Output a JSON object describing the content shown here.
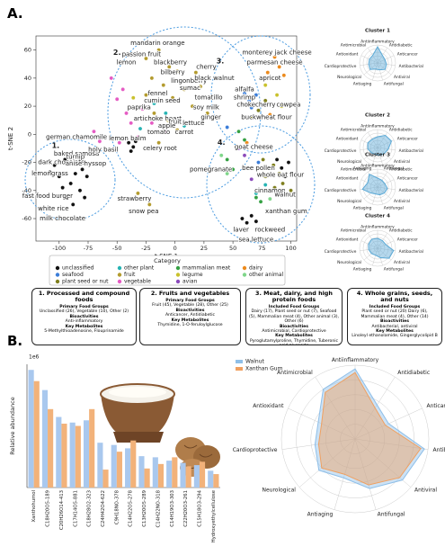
{
  "panel_a": "A.",
  "panel_b": "B.",
  "chart_data": [
    {
      "type": "scatter",
      "xlabel": "t-SNE 1",
      "ylabel": "t-SNE 2",
      "xlim": [
        -120,
        105
      ],
      "ylim": [
        -76,
        70
      ],
      "xticks": [
        -100,
        -75,
        -50,
        -25,
        0,
        25,
        50,
        75,
        100
      ],
      "yticks": [
        -60,
        -40,
        -20,
        0,
        20,
        40,
        60
      ],
      "legend_title": "Category",
      "series": [
        {
          "name": "unclassified",
          "color": "#111111",
          "x": [
            -108,
            -104,
            -100,
            -97,
            -93,
            -88,
            -90,
            -86,
            -82,
            -95,
            -80,
            -76,
            -78,
            -40,
            -36,
            -34,
            -38,
            58,
            62,
            66,
            70,
            88,
            92,
            95,
            98,
            -8,
            -2
          ],
          "y": [
            -27,
            -22,
            -30,
            -38,
            -45,
            -50,
            -35,
            -28,
            -40,
            -18,
            -25,
            -30,
            -45,
            -6,
            -9,
            -5,
            -12,
            -60,
            -63,
            -58,
            -62,
            -18,
            -24,
            -30,
            -20,
            44,
            38
          ]
        },
        {
          "name": "seafood",
          "color": "#3b7dd8",
          "x": [
            60,
            64,
            70,
            66,
            45,
            72
          ],
          "y": [
            29,
            24,
            28,
            19,
            5,
            -20
          ]
        },
        {
          "name": "plant seed or nut",
          "color": "#7f7f1e",
          "x": [
            85,
            90,
            93,
            78,
            76,
            86,
            72,
            78,
            66,
            100
          ],
          "y": [
            -22,
            -28,
            -35,
            -30,
            -18,
            -38,
            17,
            24,
            12,
            -40
          ]
        },
        {
          "name": "other plant",
          "color": "#26b3b3",
          "x": [
            -18,
            -8,
            8,
            70,
            78,
            -30
          ],
          "y": [
            22,
            15,
            6,
            -42,
            -36,
            4
          ]
        },
        {
          "name": "fruit",
          "color": "#b39b2e",
          "x": [
            -14,
            -25,
            -5,
            2,
            18,
            -20,
            -10,
            8,
            22,
            -25,
            -2,
            15,
            28,
            -18,
            -6,
            2,
            -14,
            -32,
            -22
          ],
          "y": [
            60,
            54,
            48,
            45,
            44,
            40,
            35,
            32,
            34,
            28,
            26,
            20,
            15,
            15,
            10,
            3,
            -6,
            -42,
            -50
          ]
        },
        {
          "name": "vegetable",
          "color": "#e55bc3",
          "x": [
            -55,
            -50,
            -42,
            -38,
            -28,
            -20,
            -8,
            -32,
            -48,
            -65,
            -70,
            -45
          ],
          "y": [
            40,
            25,
            15,
            8,
            18,
            8,
            2,
            -2,
            -6,
            -5,
            2,
            32
          ]
        },
        {
          "name": "mammalian meat",
          "color": "#35a043",
          "x": [
            55,
            60,
            45,
            50,
            70,
            74
          ],
          "y": [
            2,
            -4,
            -18,
            -25,
            -45,
            -48
          ]
        },
        {
          "name": "legume",
          "color": "#c9c12c",
          "x": [
            78,
            88,
            92,
            -36
          ],
          "y": [
            35,
            28,
            20,
            26
          ]
        },
        {
          "name": "avian",
          "color": "#8b4bbb",
          "x": [
            55,
            60,
            66
          ],
          "y": [
            -10,
            -15,
            -32
          ]
        },
        {
          "name": "dairy",
          "color": "#ec8a1c",
          "x": [
            86,
            90,
            80,
            94,
            82,
            62
          ],
          "y": [
            55,
            48,
            44,
            42,
            14,
            -6
          ]
        },
        {
          "name": "other animal",
          "color": "#7fd68a",
          "x": [
            45,
            40,
            82
          ],
          "y": [
            -28,
            -15,
            -46
          ]
        }
      ],
      "annotations": [
        {
          "text": "mandarin orange",
          "x": -15,
          "y": 65
        },
        {
          "text": "passion fruit",
          "x": -29,
          "y": 57
        },
        {
          "text": "lemon",
          "x": -42,
          "y": 51
        },
        {
          "text": "blackberry",
          "x": -4,
          "y": 51
        },
        {
          "text": "bilberry",
          "x": -2,
          "y": 44
        },
        {
          "text": "cherry",
          "x": 27,
          "y": 48
        },
        {
          "text": "lingonberry",
          "x": 12,
          "y": 38
        },
        {
          "text": "black walnut",
          "x": 34,
          "y": 40
        },
        {
          "text": "sumac",
          "x": 13,
          "y": 33
        },
        {
          "text": "tomatillo",
          "x": 29,
          "y": 26
        },
        {
          "text": "fennel",
          "x": -15,
          "y": 29
        },
        {
          "text": "cumin seed",
          "x": -11,
          "y": 24
        },
        {
          "text": "paprika",
          "x": -31,
          "y": 19
        },
        {
          "text": "soy milk",
          "x": 27,
          "y": 19
        },
        {
          "text": "artichoke heart",
          "x": -15,
          "y": 11
        },
        {
          "text": "fruit",
          "x": 0,
          "y": 9
        },
        {
          "text": "ginger",
          "x": 31,
          "y": 12
        },
        {
          "text": "apple",
          "x": -7,
          "y": 6
        },
        {
          "text": "lettuce",
          "x": 16,
          "y": 8
        },
        {
          "text": "tomato",
          "x": -14,
          "y": 1.5
        },
        {
          "text": "carrot",
          "x": 8,
          "y": 1.5
        },
        {
          "text": "lemon balm",
          "x": -41,
          "y": -3
        },
        {
          "text": "celery root",
          "x": -13,
          "y": -10
        },
        {
          "text": "strawberry",
          "x": -35,
          "y": -46
        },
        {
          "text": "snow pea",
          "x": -27,
          "y": -55
        },
        {
          "text": "german chamomile",
          "x": -85,
          "y": -2
        },
        {
          "text": "baked samosa",
          "x": -85,
          "y": -14
        },
        {
          "text": "holy basil",
          "x": -62,
          "y": -11
        },
        {
          "text": "turnip",
          "x": -86,
          "y": -16
        },
        {
          "text": "dark chocolate",
          "x": -98,
          "y": -20
        },
        {
          "text": "anise hyssop",
          "x": -77,
          "y": -21
        },
        {
          "text": "lemongrass",
          "x": -108,
          "y": -28
        },
        {
          "text": "fast food burger",
          "x": -110,
          "y": -44
        },
        {
          "text": "white rice",
          "x": -105,
          "y": -53
        },
        {
          "text": "milk chocolate",
          "x": -97,
          "y": -60
        },
        {
          "text": "monterey jack cheese",
          "x": 88,
          "y": 58
        },
        {
          "text": "parmesan cheese",
          "x": 86,
          "y": 51
        },
        {
          "text": "apricot",
          "x": 82,
          "y": 40
        },
        {
          "text": "alfalfa",
          "x": 60,
          "y": 32
        },
        {
          "text": "shrimp",
          "x": 60,
          "y": 26
        },
        {
          "text": "chokecherry",
          "x": 70,
          "y": 21
        },
        {
          "text": "cowpea",
          "x": 98,
          "y": 21
        },
        {
          "text": "buckwheat flour",
          "x": 79,
          "y": 12
        },
        {
          "text": "goat cheese",
          "x": 68,
          "y": -9
        },
        {
          "text": "bee pollen",
          "x": 72,
          "y": -24
        },
        {
          "text": "whole oat flour",
          "x": 91,
          "y": -29
        },
        {
          "text": "pomegranate",
          "x": 31,
          "y": -25
        },
        {
          "text": "cinnamon",
          "x": 82,
          "y": -40
        },
        {
          "text": "walnut",
          "x": 95,
          "y": -43
        },
        {
          "text": "xanthan gum",
          "x": 96,
          "y": -55
        },
        {
          "text": "laver",
          "x": 57,
          "y": -68
        },
        {
          "text": "rockweed",
          "x": 82,
          "y": -68
        },
        {
          "text": "sea lettuce",
          "x": 70,
          "y": -75
        },
        {
          "text": "1.",
          "x": -103,
          "y": -8
        },
        {
          "text": "2.",
          "x": -50,
          "y": 58
        },
        {
          "text": "3.",
          "x": 39,
          "y": 52
        },
        {
          "text": "4.",
          "x": 40,
          "y": -6
        }
      ]
    },
    {
      "type": "radar",
      "title": "Cluster 1",
      "color": "#5aa9d6",
      "categories": [
        "Antiinflammatory",
        "Antidiabetic",
        "Anticancer",
        "Antibacterial",
        "Antiviral",
        "Antifungal",
        "Antiaging",
        "Neurological",
        "Cardioprotective",
        "Antioxidant",
        "Antimicrobial"
      ],
      "values": [
        0.9,
        0.5,
        0.45,
        0.5,
        0.55,
        0.4,
        0.35,
        0.55,
        0.5,
        0.5,
        0.5
      ],
      "ylim": [
        0,
        1
      ]
    },
    {
      "type": "radar",
      "title": "Cluster 2",
      "color": "#5aa9d6",
      "categories": [
        "Antiinflammatory",
        "Antidiabetic",
        "Anticancer",
        "Antibacterial",
        "Antiviral",
        "Antifungal",
        "Antiaging",
        "Neurological",
        "Cardioprotective",
        "Antioxidant",
        "Antimicrobial"
      ],
      "values": [
        0.6,
        0.8,
        0.85,
        0.6,
        0.5,
        0.45,
        0.4,
        0.45,
        0.55,
        0.6,
        0.55
      ],
      "ylim": [
        0,
        1
      ]
    },
    {
      "type": "radar",
      "title": "Cluster 3",
      "color": "#5aa9d6",
      "categories": [
        "Antiinflammatory",
        "Antidiabetic",
        "Anticancer",
        "Antibacterial",
        "Antiviral",
        "Antifungal",
        "Antiaging",
        "Neurological",
        "Cardioprotective",
        "Antioxidant",
        "Antimicrobial"
      ],
      "values": [
        0.5,
        0.45,
        0.45,
        0.55,
        0.5,
        0.45,
        0.4,
        0.5,
        0.85,
        0.6,
        0.85
      ],
      "ylim": [
        0,
        1
      ]
    },
    {
      "type": "radar",
      "title": "Cluster 4",
      "color": "#5aa9d6",
      "categories": [
        "Antiinflammatory",
        "Antidiabetic",
        "Anticancer",
        "Antibacterial",
        "Antiviral",
        "Antifungal",
        "Antiaging",
        "Neurological",
        "Cardioprotective",
        "Antioxidant",
        "Antimicrobial"
      ],
      "values": [
        0.55,
        0.5,
        0.5,
        0.9,
        0.85,
        0.55,
        0.4,
        0.45,
        0.5,
        0.55,
        0.6
      ],
      "ylim": [
        0,
        1
      ]
    },
    {
      "type": "bar",
      "ylabel": "Relative abundance",
      "offset_label": "1e6",
      "ylim": [
        0,
        1.1
      ],
      "categories": [
        "Xanthohumol",
        "C18H20O5-189",
        "C20H26O14-413",
        "C17H14O5-881",
        "C18H28O2-323",
        "C24H42O4-622",
        "C9H18NO-378",
        "C14H22O5-278",
        "C13H20O5-289",
        "C14H22NO-318",
        "C14H19O3-303",
        "C22H20O3-261",
        "C15H18O3-294",
        "Hydroxyethylcellulose"
      ],
      "series": [
        {
          "name": "Walnut",
          "color": "#a9c8ee",
          "values": [
            1.05,
            0.87,
            0.63,
            0.58,
            0.6,
            0.4,
            0.38,
            0.35,
            0.28,
            0.27,
            0.24,
            0.22,
            0.2,
            0.15
          ]
        },
        {
          "name": "Xanthan Gum",
          "color": "#f2b27a",
          "values": [
            0.95,
            0.7,
            0.57,
            0.55,
            0.7,
            0.16,
            0.32,
            0.42,
            0.17,
            0.21,
            0.27,
            0.19,
            0.23,
            0.12
          ]
        }
      ]
    },
    {
      "type": "radar",
      "categories": [
        "Antiinflammatory",
        "Antidiabetic",
        "Anticancer",
        "Antibacterial",
        "Antiviral",
        "Antifungal",
        "Antiaging",
        "Neurological",
        "Cardioprotective",
        "Antioxidant",
        "Antimicrobial"
      ],
      "ylim": [
        0,
        1
      ],
      "series": [
        {
          "name": "Walnut",
          "color": "#8fbfe8",
          "values": [
            0.95,
            0.55,
            0.5,
            0.95,
            0.85,
            0.7,
            0.55,
            0.65,
            0.55,
            0.55,
            0.8
          ]
        },
        {
          "name": "Xanthan Gum",
          "color": "#f0a060",
          "values": [
            0.9,
            0.5,
            0.45,
            0.9,
            0.8,
            0.65,
            0.5,
            0.6,
            0.5,
            0.5,
            0.75
          ]
        }
      ]
    }
  ],
  "clusters": [
    {
      "title": "1. Processed and compound foods",
      "groups_heading": "Primary Food Groups",
      "groups": "Unclassified (26), Vegetable (10), Other (2)",
      "bio_heading": "Bioactivities",
      "bio": "Anti-inflammatory",
      "metab_heading": "Key Metabolites",
      "metab": "5-Methylthioadenosine, Flouprinamide"
    },
    {
      "title": "2. Fruits and vegetables",
      "groups_heading": "Primary Food Groups",
      "groups": "Fruit (45), Vegetable (28), Other (25)",
      "bio_heading": "Bioactivities",
      "bio": "Anticancer, Antidiabetic",
      "metab_heading": "Key Metabolites",
      "metab": "Thymidine, 1-O-feruloylglucose"
    },
    {
      "title": "3. Meat, dairy, and high protein foods",
      "groups_heading": "Included Food Groups",
      "groups": "Dairy (17), Plant seed or nut (7), Seafood (5), Mammalian meat (4), Other animal (3), Other (6)",
      "bio_heading": "Bioactivities",
      "bio": "Antimicrobial, Cardioprotective",
      "metab_heading": "Key Metabolites",
      "metab": "Pyroglutamylproline, Thymidine, Tuberonic acid glucoside"
    },
    {
      "title": "4. Whole grains, seeds, and nuts",
      "groups_heading": "Included Food Groups",
      "groups": "Plant seed or nut (20) Dairy (6), Mammalian meat (4), Other (14)",
      "bio_heading": "Bioactivities",
      "bio": "Antibacterial, antiviral",
      "metab_heading": "Key Metabolites",
      "metab": "Linoleyl ethanolamide, Gingerglycolipid B"
    }
  ]
}
